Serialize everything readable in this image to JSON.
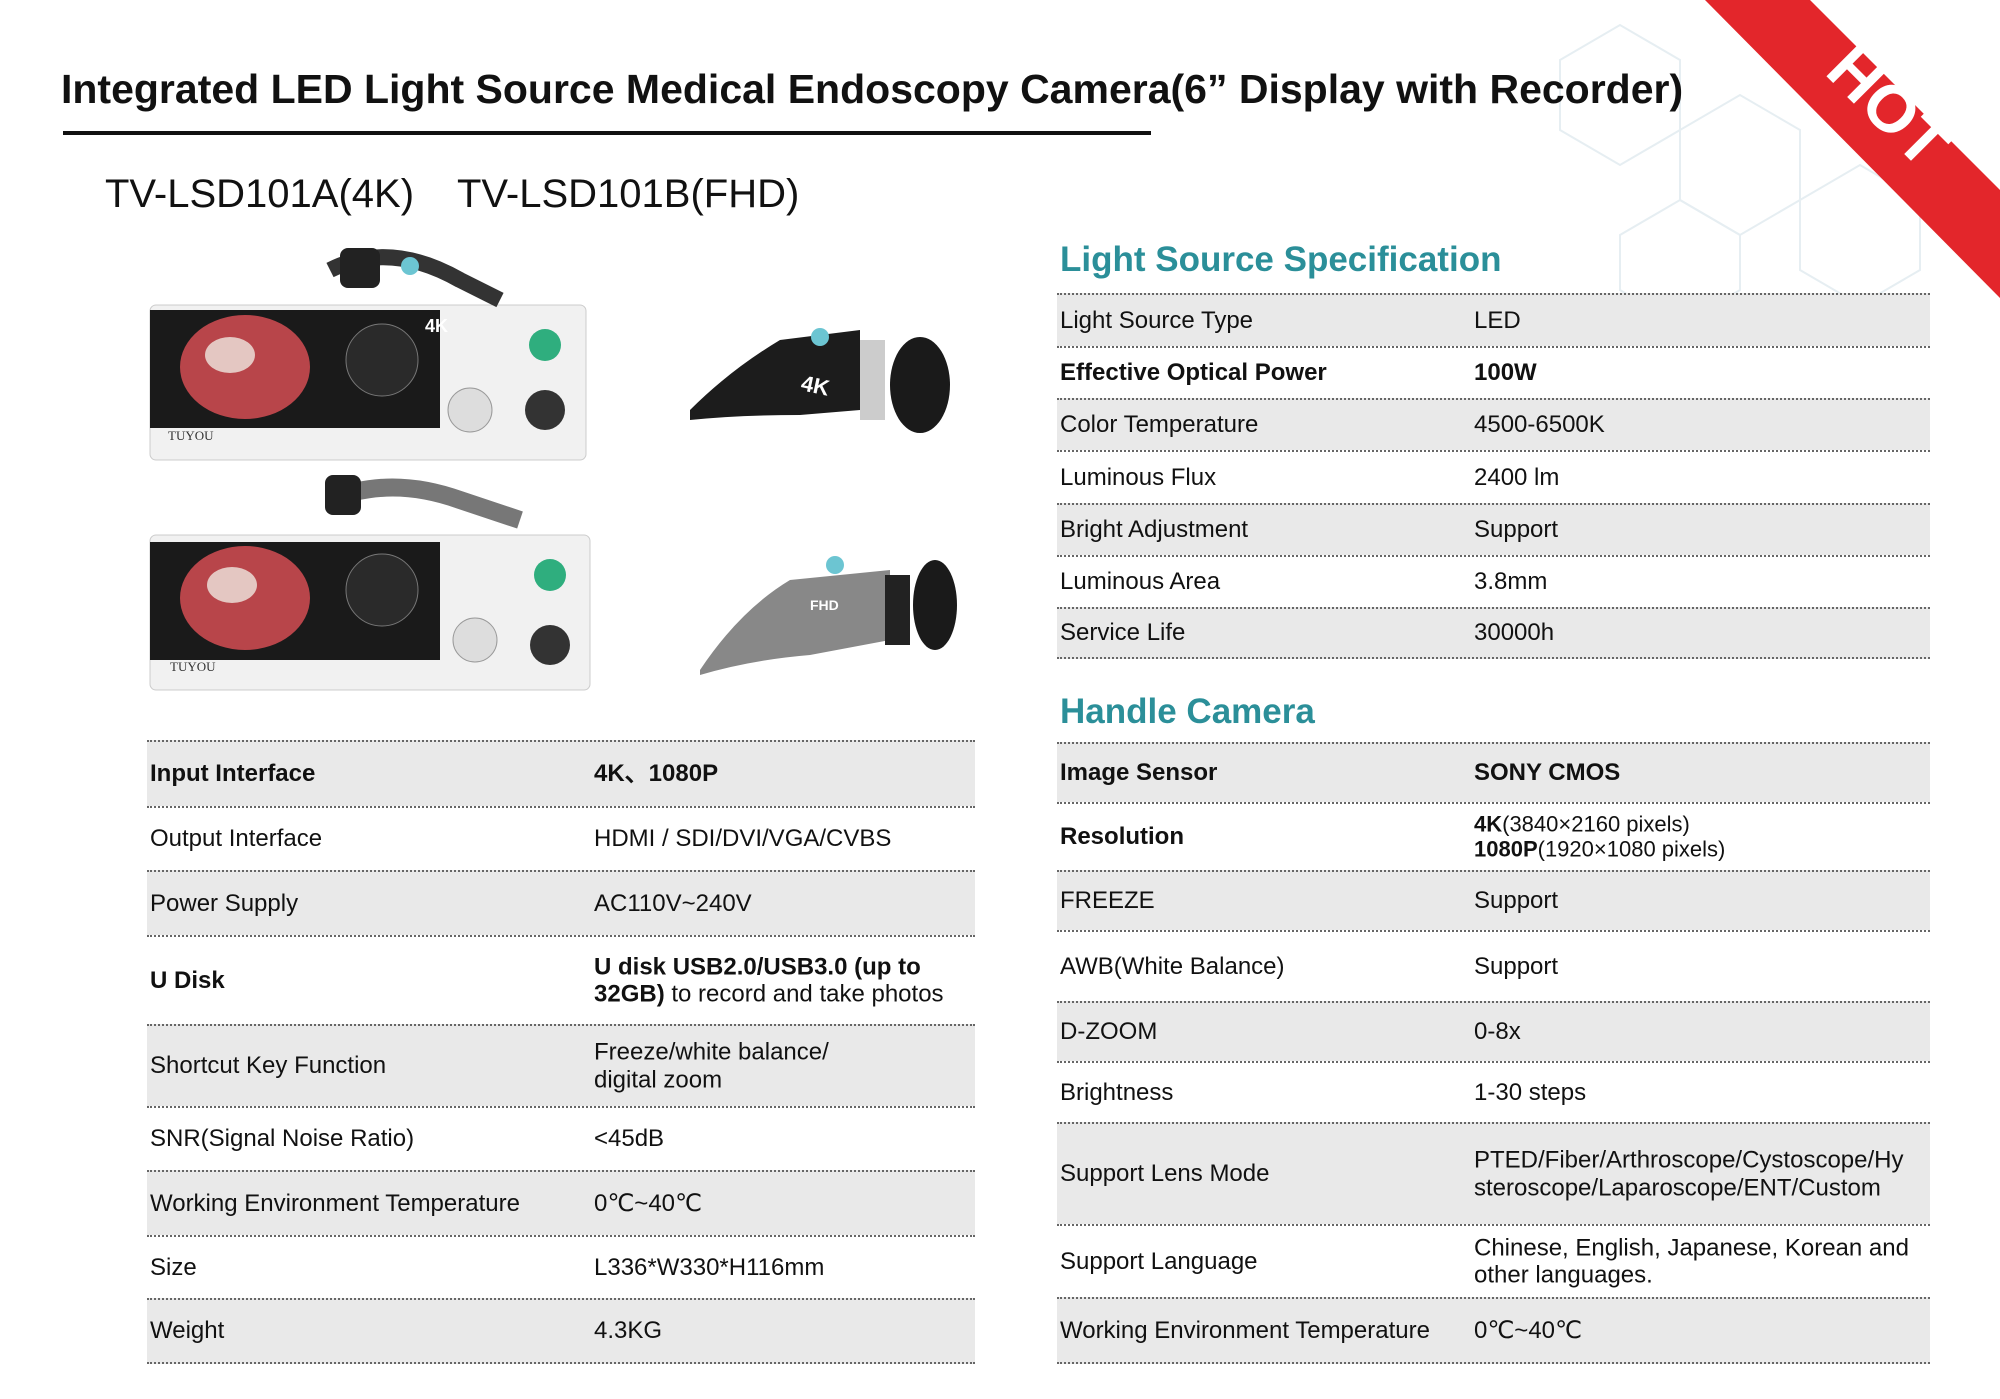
{
  "header": {
    "title": "Integrated LED Light Source Medical Endoscopy Camera(6” Display with Recorder)",
    "badge": "HOT"
  },
  "models": [
    "TV-LSD101A(4K)",
    "TV-LSD101B(FHD)"
  ],
  "product_images": {
    "console_badge": "4K",
    "brand": "TUYOU",
    "camera_4k_label": "4K",
    "camera_fhd_label": "FHD"
  },
  "spec_table": {
    "rows": [
      {
        "label": "Input Interface",
        "value": "4K、1080P",
        "bold": true
      },
      {
        "label": "Output Interface",
        "value": "HDMI / SDI/DVI/VGA/CVBS"
      },
      {
        "label": "Power Supply",
        "value": "AC110V~240V"
      },
      {
        "label": "U Disk",
        "value": [
          {
            "text": "U disk USB2.0/USB3.0 (up to\n32GB)",
            "bold": true
          },
          {
            "text": " to record and take photos"
          }
        ],
        "bold": true
      },
      {
        "label": "Shortcut Key Function",
        "value": "Freeze/white balance/\ndigital zoom"
      },
      {
        "label": "SNR(Signal Noise Ratio)",
        "value": "<45dB"
      },
      {
        "label": "Working Environment Temperature",
        "value": "0℃~40℃"
      },
      {
        "label": "Size",
        "value": "L336*W330*H116mm"
      },
      {
        "label": "Weight",
        "value": "4.3KG"
      }
    ]
  },
  "light_source": {
    "title": "Light Source Specification",
    "rows": [
      {
        "label": "Light Source Type",
        "value": "LED"
      },
      {
        "label": "Effective Optical Power",
        "value": "100W",
        "bold": true
      },
      {
        "label": "Color Temperature",
        "value": "4500-6500K"
      },
      {
        "label": "Luminous Flux",
        "value": "2400 lm"
      },
      {
        "label": "Bright Adjustment",
        "value": "Support"
      },
      {
        "label": "Luminous Area",
        "value": "3.8mm"
      },
      {
        "label": "Service Life",
        "value": "30000h"
      }
    ]
  },
  "handle_camera": {
    "title": "Handle Camera",
    "rows": [
      {
        "label": "Image Sensor",
        "value": "SONY CMOS",
        "bold": true
      },
      {
        "label": "Resolution",
        "value": [
          [
            {
              "text": "4K",
              "bold": true
            },
            {
              "text": "(3840×2160 pixels)"
            }
          ],
          [
            {
              "text": "1080P",
              "bold": true
            },
            {
              "text": "(1920×1080 pixels)"
            }
          ]
        ],
        "bold": true
      },
      {
        "label": "FREEZE",
        "value": "Support"
      },
      {
        "label": "AWB(White Balance)",
        "value": "Support"
      },
      {
        "label": "D-ZOOM",
        "value": "0-8x"
      },
      {
        "label": "Brightness",
        "value": "1-30 steps"
      },
      {
        "label": "Support Lens Mode",
        "value": "PTED/Fiber/Arthroscope/Cystoscope/Hy\nsteroscope/Laparoscope/ENT/Custom"
      },
      {
        "label": "Support Language",
        "value": "Chinese, English, Japanese, Korean and\nother languages."
      },
      {
        "label": "Working Environment Temperature",
        "value": "0℃~40℃"
      }
    ]
  }
}
